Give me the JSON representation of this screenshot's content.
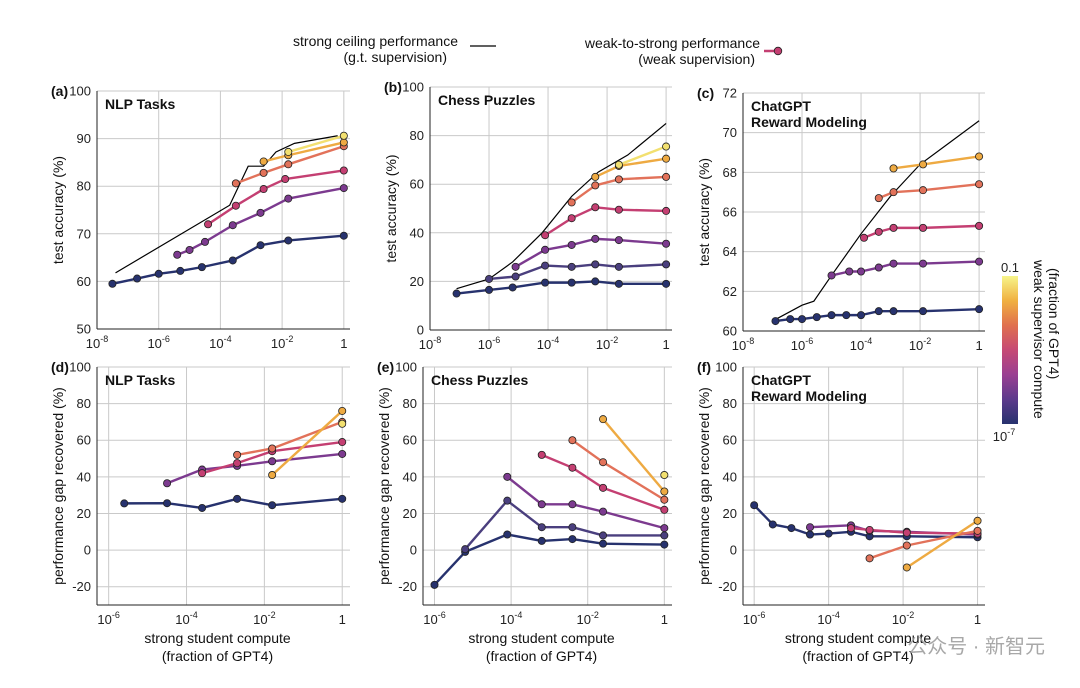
{
  "legend": {
    "ceiling_label_1": "strong ceiling performance",
    "ceiling_label_2": "(g.t. supervision)",
    "w2s_label_1": "weak-to-strong performance",
    "w2s_label_2": "(weak supervision)"
  },
  "colorbar": {
    "title_1": "weak supervisor compute",
    "title_2": "(fraction of GPT4)",
    "top_label": "0.1",
    "bottom_label_base": "10",
    "bottom_label_exp": "-7",
    "colors": [
      "#f7f58a",
      "#f0b040",
      "#e0704e",
      "#c64a75",
      "#9a3f91",
      "#5c3a8c",
      "#27326e"
    ]
  },
  "colors": {
    "ceiling": "#000000",
    "levels": [
      "#27326e",
      "#4a3f7e",
      "#7c3a8f",
      "#c43f72",
      "#e2725a",
      "#eeaa42",
      "#f2e070"
    ]
  },
  "watermark": "公众号 · 新智元",
  "chart_data": [
    {
      "id": "a",
      "letter": "(a)",
      "title_1": "NLP Tasks",
      "title_2": "",
      "type": "line",
      "xscale": "log",
      "xlim_exp": [
        -8,
        0.2
      ],
      "ylim": [
        50,
        100
      ],
      "yticks": [
        50,
        60,
        70,
        80,
        90,
        100
      ],
      "xtick_exps": [
        -8,
        -6,
        -4,
        -2,
        0
      ],
      "xtick_labels": [
        {
          "base": "10",
          "exp": "-8"
        },
        {
          "base": "10",
          "exp": "-6"
        },
        {
          "base": "10",
          "exp": "-4"
        },
        {
          "base": "10",
          "exp": "-2"
        },
        {
          "base": "1",
          "exp": ""
        }
      ],
      "ylabel": "test accuracy (%)",
      "xlabel_1": "",
      "xlabel_2": "",
      "ceiling": {
        "x": [
          -7.4,
          -3.7,
          -3.1,
          -2.6,
          -2.2,
          -1.6,
          -0.2
        ],
        "y": [
          61.8,
          76,
          84.2,
          84.2,
          87.2,
          89,
          90.6
        ]
      },
      "series": [
        {
          "level": 0,
          "name": "1e-7",
          "x": [
            -7.5,
            -6.7,
            -6.0,
            -5.3,
            -4.6,
            -3.6,
            -2.7,
            -1.8,
            0
          ],
          "y": [
            59.5,
            60.6,
            61.6,
            62.2,
            63,
            64.4,
            67.6,
            68.6,
            69.6
          ]
        },
        {
          "level": 2,
          "name": "3e-6",
          "x": [
            -5.4,
            -5.0,
            -4.5,
            -3.6,
            -2.7,
            -1.8,
            0
          ],
          "y": [
            65.6,
            66.6,
            68.3,
            71.8,
            74.4,
            77.4,
            79.6
          ]
        },
        {
          "level": 3,
          "name": "1e-4",
          "x": [
            -4.4,
            -3.5,
            -2.6,
            -1.9,
            0
          ],
          "y": [
            72,
            75.9,
            79.4,
            81.5,
            83.3
          ]
        },
        {
          "level": 4,
          "name": "1e-3",
          "x": [
            -3.5,
            -2.6,
            -1.8,
            0
          ],
          "y": [
            80.6,
            82.8,
            84.6,
            88.4
          ]
        },
        {
          "level": 5,
          "name": "1e-2",
          "x": [
            -2.6,
            -1.8,
            0
          ],
          "y": [
            85.2,
            86.5,
            89.2
          ]
        },
        {
          "level": 6,
          "name": "0.1",
          "x": [
            -1.8,
            0
          ],
          "y": [
            87.2,
            90.6
          ]
        }
      ]
    },
    {
      "id": "b",
      "letter": "(b)",
      "title_1": "Chess Puzzles",
      "title_2": "",
      "type": "line",
      "xscale": "log",
      "xlim_exp": [
        -8,
        0.2
      ],
      "ylim": [
        0,
        100
      ],
      "yticks": [
        0,
        20,
        40,
        60,
        80,
        100
      ],
      "xtick_exps": [
        -8,
        -6,
        -4,
        -2,
        0
      ],
      "xtick_labels": [
        {
          "base": "10",
          "exp": "-8"
        },
        {
          "base": "10",
          "exp": "-6"
        },
        {
          "base": "10",
          "exp": "-4"
        },
        {
          "base": "10",
          "exp": "-2"
        },
        {
          "base": "1",
          "exp": ""
        }
      ],
      "ylabel": "test accuracy (%)",
      "xlabel_1": "",
      "xlabel_2": "",
      "ceiling": {
        "x": [
          -7.1,
          -6.0,
          -5.2,
          -4.2,
          -3.2,
          -2.3,
          -1.3,
          0
        ],
        "y": [
          17,
          21,
          28,
          40,
          55,
          65,
          72,
          85
        ]
      },
      "series": [
        {
          "level": 0,
          "name": "1e-7",
          "x": [
            -7.1,
            -6.0,
            -5.2,
            -4.1,
            -3.2,
            -2.4,
            -1.6,
            0
          ],
          "y": [
            15,
            16.5,
            17.5,
            19.5,
            19.5,
            20,
            19,
            19
          ]
        },
        {
          "level": 1,
          "name": "1e-6",
          "x": [
            -6.0,
            -5.1,
            -4.1,
            -3.2,
            -2.4,
            -1.6,
            0
          ],
          "y": [
            21,
            22,
            26.5,
            26,
            27,
            26,
            27
          ]
        },
        {
          "level": 2,
          "name": "1e-5",
          "x": [
            -5.1,
            -4.1,
            -3.2,
            -2.4,
            -1.6,
            0
          ],
          "y": [
            26,
            33,
            35,
            37.5,
            37,
            35.5
          ]
        },
        {
          "level": 3,
          "name": "1e-4",
          "x": [
            -4.1,
            -3.2,
            -2.4,
            -1.6,
            0
          ],
          "y": [
            39,
            46,
            50.5,
            49.5,
            49
          ]
        },
        {
          "level": 4,
          "name": "1e-3",
          "x": [
            -3.2,
            -2.4,
            -1.6,
            0
          ],
          "y": [
            52.5,
            59.5,
            62,
            63
          ]
        },
        {
          "level": 5,
          "name": "1e-2",
          "x": [
            -2.4,
            -1.6,
            0
          ],
          "y": [
            63,
            67.5,
            70.5
          ]
        },
        {
          "level": 6,
          "name": "0.1",
          "x": [
            -1.6,
            0
          ],
          "y": [
            68,
            75.5
          ]
        }
      ]
    },
    {
      "id": "c",
      "letter": "(c)",
      "title_1": "ChatGPT",
      "title_2": "Reward Modeling",
      "type": "line",
      "xscale": "log",
      "xlim_exp": [
        -8,
        0.2
      ],
      "ylim": [
        60,
        72
      ],
      "yticks": [
        60,
        62,
        64,
        66,
        68,
        70,
        72
      ],
      "xtick_exps": [
        -8,
        -6,
        -4,
        -2,
        0
      ],
      "xtick_labels": [
        {
          "base": "10",
          "exp": "-8"
        },
        {
          "base": "10",
          "exp": "-6"
        },
        {
          "base": "10",
          "exp": "-4"
        },
        {
          "base": "10",
          "exp": "-2"
        },
        {
          "base": "1",
          "exp": ""
        }
      ],
      "ylabel": "test accuracy (%)",
      "xlabel_1": "",
      "xlabel_2": "",
      "ceiling": {
        "x": [
          -7.0,
          -6.0,
          -5.6,
          -5.0,
          -4.0,
          -3.0,
          -2.0,
          -1.0,
          0
        ],
        "y": [
          60.5,
          61.3,
          61.5,
          62.8,
          64.9,
          66.8,
          68.4,
          69.5,
          70.6
        ]
      },
      "series": [
        {
          "level": 0,
          "name": "1e-7",
          "x": [
            -6.9,
            -6.4,
            -6.0,
            -5.5,
            -5.0,
            -4.5,
            -4.0,
            -3.4,
            -2.9,
            -1.9,
            0
          ],
          "y": [
            60.5,
            60.6,
            60.6,
            60.7,
            60.8,
            60.8,
            60.8,
            61,
            61,
            61,
            61.1
          ]
        },
        {
          "level": 2,
          "name": "1e-5",
          "x": [
            -5.0,
            -4.4,
            -4.0,
            -3.4,
            -2.9,
            -1.9,
            0
          ],
          "y": [
            62.8,
            63,
            63,
            63.2,
            63.4,
            63.4,
            63.5
          ]
        },
        {
          "level": 3,
          "name": "1e-4",
          "x": [
            -3.9,
            -3.4,
            -2.9,
            -1.9,
            0
          ],
          "y": [
            64.7,
            65,
            65.2,
            65.2,
            65.3
          ]
        },
        {
          "level": 4,
          "name": "1e-3",
          "x": [
            -3.4,
            -2.9,
            -1.9,
            0
          ],
          "y": [
            66.7,
            67,
            67.1,
            67.4
          ]
        },
        {
          "level": 5,
          "name": "1e-2",
          "x": [
            -2.9,
            -1.9,
            0
          ],
          "y": [
            68.2,
            68.4,
            68.8
          ]
        }
      ]
    },
    {
      "id": "d",
      "letter": "(d)",
      "title_1": "NLP Tasks",
      "title_2": "",
      "type": "line",
      "xscale": "log",
      "xlim_exp": [
        -6.3,
        0.2
      ],
      "ylim": [
        -30,
        100
      ],
      "yticks": [
        -20,
        0,
        20,
        40,
        60,
        80,
        100
      ],
      "xtick_exps": [
        -6,
        -4,
        -2,
        0
      ],
      "xtick_labels": [
        {
          "base": "10",
          "exp": "-6"
        },
        {
          "base": "10",
          "exp": "-4"
        },
        {
          "base": "10",
          "exp": "-2"
        },
        {
          "base": "1",
          "exp": ""
        }
      ],
      "ylabel": "performance gap recovered (%)",
      "xlabel_1": "strong student compute",
      "xlabel_2": "(fraction of GPT4)",
      "ceiling": null,
      "series": [
        {
          "level": 0,
          "name": "1e-7",
          "x": [
            -5.6,
            -4.5,
            -3.6,
            -2.7,
            -1.8,
            0
          ],
          "y": [
            25.5,
            25.6,
            23,
            28,
            24.5,
            28
          ]
        },
        {
          "level": 2,
          "name": "3e-6",
          "x": [
            -4.5,
            -3.6,
            -2.7,
            -1.8,
            0
          ],
          "y": [
            36.5,
            44,
            46,
            48.5,
            52.5
          ]
        },
        {
          "level": 3,
          "name": "1e-4",
          "x": [
            -3.6,
            -2.7,
            -1.8,
            0
          ],
          "y": [
            42,
            47.5,
            54,
            59
          ]
        },
        {
          "level": 4,
          "name": "1e-3",
          "x": [
            -2.7,
            -1.8,
            0
          ],
          "y": [
            52,
            55.5,
            70
          ]
        },
        {
          "level": 5,
          "name": "1e-2",
          "x": [
            -1.8,
            0
          ],
          "y": [
            41,
            76
          ]
        },
        {
          "level": 6,
          "name": "0.1",
          "x": [
            0
          ],
          "y": [
            69
          ]
        }
      ]
    },
    {
      "id": "e",
      "letter": "(e)",
      "title_1": "Chess Puzzles",
      "title_2": "",
      "type": "line",
      "xscale": "log",
      "xlim_exp": [
        -6.3,
        0.2
      ],
      "ylim": [
        -30,
        100
      ],
      "yticks": [
        -20,
        0,
        20,
        40,
        60,
        80,
        100
      ],
      "xtick_exps": [
        -6,
        -4,
        -2,
        0
      ],
      "xtick_labels": [
        {
          "base": "10",
          "exp": "-6"
        },
        {
          "base": "10",
          "exp": "-4"
        },
        {
          "base": "10",
          "exp": "-2"
        },
        {
          "base": "1",
          "exp": ""
        }
      ],
      "ylabel": "performance gap recovered (%)",
      "xlabel_1": "strong student compute",
      "xlabel_2": "(fraction of GPT4)",
      "ceiling": null,
      "series": [
        {
          "level": 0,
          "name": "1e-7",
          "x": [
            -6.0,
            -5.2,
            -4.1,
            -3.2,
            -2.4,
            -1.6,
            0
          ],
          "y": [
            -19,
            -1,
            8.5,
            5,
            6,
            3.5,
            3
          ]
        },
        {
          "level": 1,
          "name": "1e-6",
          "x": [
            -5.2,
            -4.1,
            -3.2,
            -2.4,
            -1.6,
            0
          ],
          "y": [
            0.5,
            27,
            12.5,
            12.5,
            8,
            8
          ]
        },
        {
          "level": 2,
          "name": "1e-5",
          "x": [
            -4.1,
            -3.2,
            -2.4,
            -1.6,
            0
          ],
          "y": [
            40,
            25,
            25,
            21,
            12
          ]
        },
        {
          "level": 3,
          "name": "1e-4",
          "x": [
            -3.2,
            -2.4,
            -1.6,
            0
          ],
          "y": [
            52,
            45,
            34,
            22
          ]
        },
        {
          "level": 4,
          "name": "1e-3",
          "x": [
            -2.4,
            -1.6,
            0
          ],
          "y": [
            60,
            48,
            27.5
          ]
        },
        {
          "level": 5,
          "name": "1e-2",
          "x": [
            -1.6,
            0
          ],
          "y": [
            71.5,
            32
          ]
        },
        {
          "level": 6,
          "name": "0.1",
          "x": [
            0
          ],
          "y": [
            41
          ]
        }
      ]
    },
    {
      "id": "f",
      "letter": "(f)",
      "title_1": "ChatGPT",
      "title_2": "Reward Modeling",
      "type": "line",
      "xscale": "log",
      "xlim_exp": [
        -6.3,
        0.2
      ],
      "ylim": [
        -30,
        100
      ],
      "yticks": [
        -20,
        0,
        20,
        40,
        60,
        80,
        100
      ],
      "xtick_exps": [
        -6,
        -4,
        -2,
        0
      ],
      "xtick_labels": [
        {
          "base": "10",
          "exp": "-6"
        },
        {
          "base": "10",
          "exp": "-4"
        },
        {
          "base": "10",
          "exp": "-2"
        },
        {
          "base": "1",
          "exp": ""
        }
      ],
      "ylabel": "performance gap recovered (%)",
      "xlabel_1": "strong student compute",
      "xlabel_2": "(fraction of GPT4)",
      "ceiling": null,
      "series": [
        {
          "level": 0,
          "name": "1e-7",
          "x": [
            -6.0,
            -5.5,
            -5.0,
            -4.5,
            -4.0,
            -3.4,
            -2.9,
            -1.9,
            0
          ],
          "y": [
            24.5,
            14,
            12,
            8.5,
            9,
            10,
            7.5,
            7.5,
            7
          ]
        },
        {
          "level": 2,
          "name": "1e-5",
          "x": [
            -4.5,
            -3.4,
            -2.9,
            -1.9,
            0
          ],
          "y": [
            12.5,
            13.5,
            10.5,
            10,
            8.5
          ]
        },
        {
          "level": 3,
          "name": "1e-4",
          "x": [
            -3.4,
            -2.9,
            -1.9,
            0
          ],
          "y": [
            12,
            11,
            9.5,
            9
          ]
        },
        {
          "level": 4,
          "name": "1e-3",
          "x": [
            -2.9,
            -1.9,
            0
          ],
          "y": [
            -4.5,
            2.5,
            10.5
          ]
        },
        {
          "level": 5,
          "name": "1e-2",
          "x": [
            -1.9,
            0
          ],
          "y": [
            -9.5,
            16
          ]
        }
      ]
    }
  ]
}
